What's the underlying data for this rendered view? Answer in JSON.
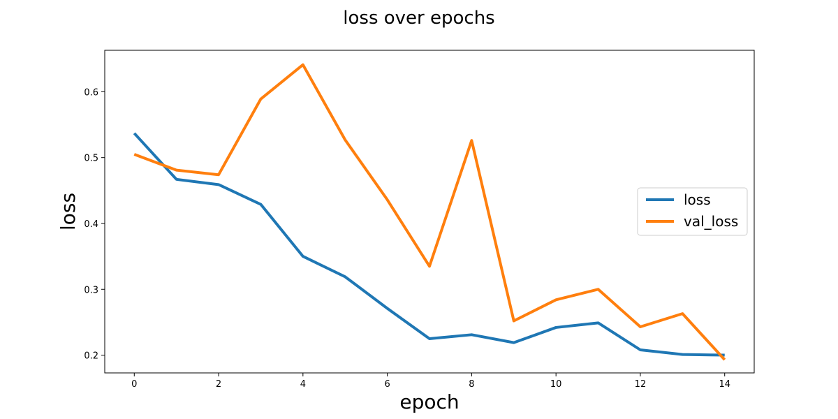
{
  "chart_data": {
    "type": "line",
    "title": "loss over epochs",
    "xlabel": "epoch",
    "ylabel": "loss",
    "x": [
      0,
      1,
      2,
      3,
      4,
      5,
      6,
      7,
      8,
      9,
      10,
      11,
      12,
      13,
      14
    ],
    "xlim": [
      -0.7,
      14.7
    ],
    "ylim": [
      0.173,
      0.663
    ],
    "xticks": [
      0,
      2,
      4,
      6,
      8,
      10,
      12,
      14
    ],
    "yticks": [
      0.2,
      0.3,
      0.4,
      0.5,
      0.6
    ],
    "ytick_labels": [
      "0.2",
      "0.3",
      "0.4",
      "0.5",
      "0.6"
    ],
    "xtick_labels": [
      "0",
      "2",
      "4",
      "6",
      "8",
      "10",
      "12",
      "14"
    ],
    "grid": false,
    "legend_position": "center-right",
    "series": [
      {
        "name": "loss",
        "color": "#1f77b4",
        "values": [
          0.537,
          0.467,
          0.459,
          0.429,
          0.35,
          0.319,
          0.271,
          0.225,
          0.231,
          0.219,
          0.242,
          0.249,
          0.208,
          0.201,
          0.2
        ]
      },
      {
        "name": "val_loss",
        "color": "#ff7f0e",
        "values": [
          0.505,
          0.481,
          0.474,
          0.589,
          0.641,
          0.527,
          0.436,
          0.335,
          0.526,
          0.252,
          0.284,
          0.3,
          0.243,
          0.263,
          0.193
        ]
      }
    ]
  }
}
